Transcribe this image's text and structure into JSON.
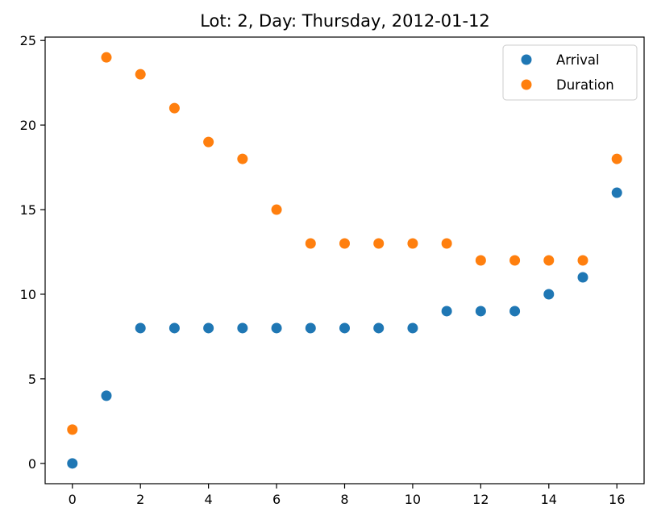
{
  "chart_data": {
    "type": "scatter",
    "title": "Lot: 2, Day: Thursday, 2012-01-12",
    "xlabel": "",
    "ylabel": "",
    "xlim": [
      -0.8,
      16.8
    ],
    "ylim": [
      -1.2,
      25.2
    ],
    "x_ticks": [
      0,
      2,
      4,
      6,
      8,
      10,
      12,
      14,
      16
    ],
    "y_ticks": [
      0,
      5,
      10,
      15,
      20,
      25
    ],
    "grid": false,
    "legend_position": "top-right",
    "x": [
      0,
      1,
      2,
      3,
      4,
      5,
      6,
      7,
      8,
      9,
      10,
      11,
      12,
      13,
      14,
      15,
      16
    ],
    "series": [
      {
        "name": "Arrival",
        "color": "#1f77b4",
        "values": [
          0,
          4,
          8,
          8,
          8,
          8,
          8,
          8,
          8,
          8,
          8,
          9,
          9,
          9,
          10,
          11,
          16
        ]
      },
      {
        "name": "Duration",
        "color": "#ff7f0e",
        "values": [
          2,
          24,
          23,
          21,
          19,
          18,
          15,
          13,
          13,
          13,
          13,
          13,
          12,
          12,
          12,
          12,
          18
        ]
      }
    ]
  }
}
